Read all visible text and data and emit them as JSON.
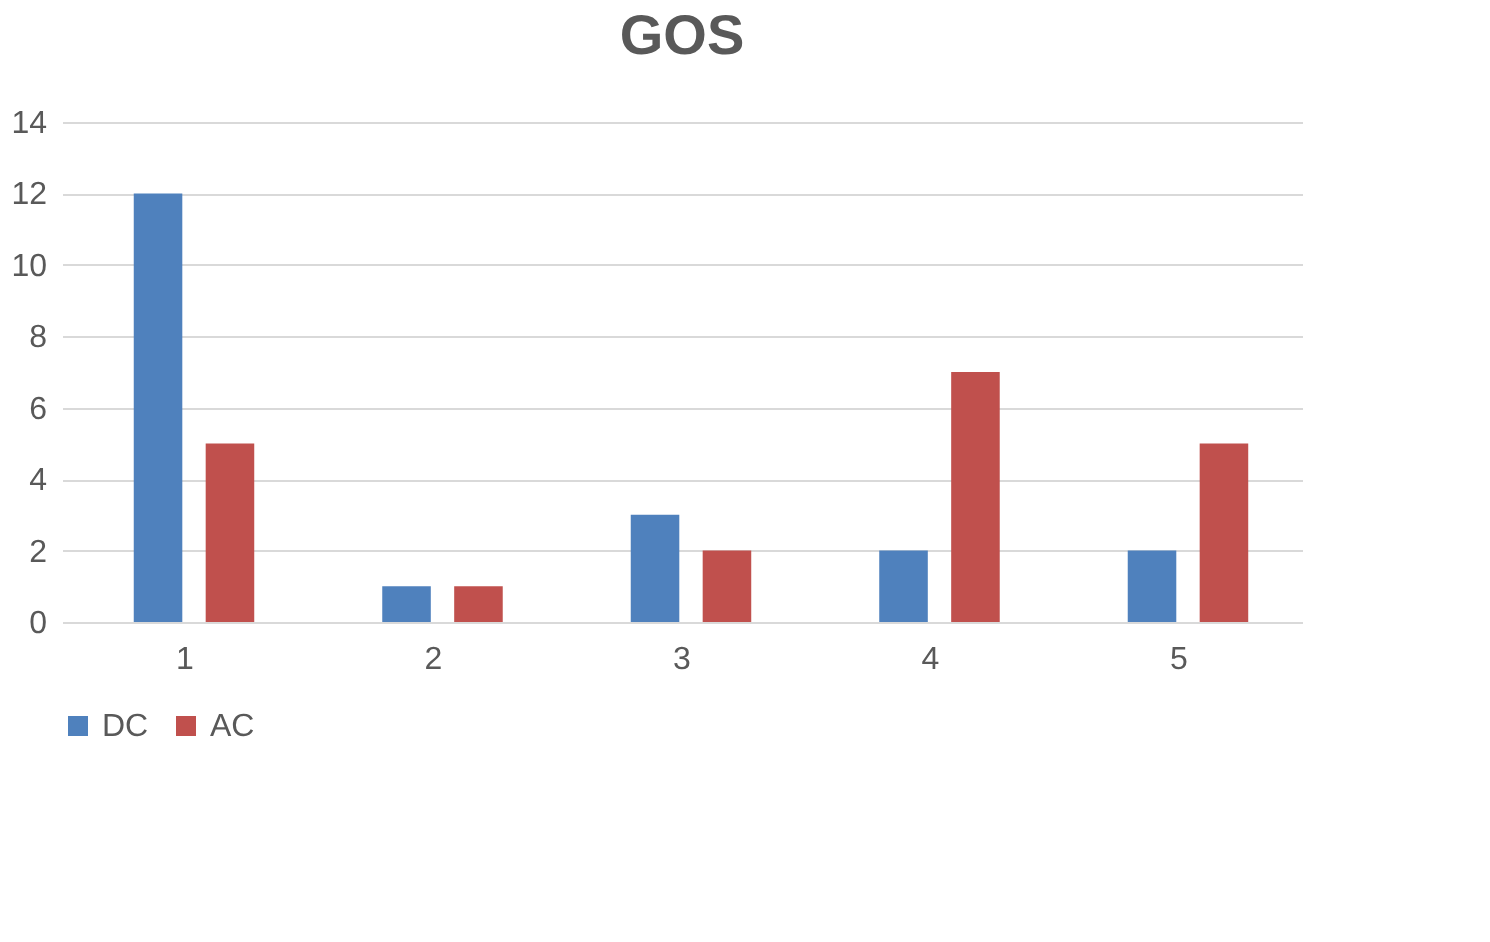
{
  "chart_data": {
    "type": "bar",
    "title": "GOS",
    "categories": [
      "1",
      "2",
      "3",
      "4",
      "5"
    ],
    "series": [
      {
        "name": "DC",
        "color": "#4f81bd",
        "values": [
          12,
          1,
          3,
          2,
          2
        ]
      },
      {
        "name": "AC",
        "color": "#c0504d",
        "values": [
          5,
          1,
          2,
          7,
          5
        ]
      }
    ],
    "ylim": [
      0,
      14
    ],
    "yticks": [
      0,
      2,
      4,
      6,
      8,
      10,
      12,
      14
    ],
    "grid": "y",
    "legend": "bottom"
  }
}
